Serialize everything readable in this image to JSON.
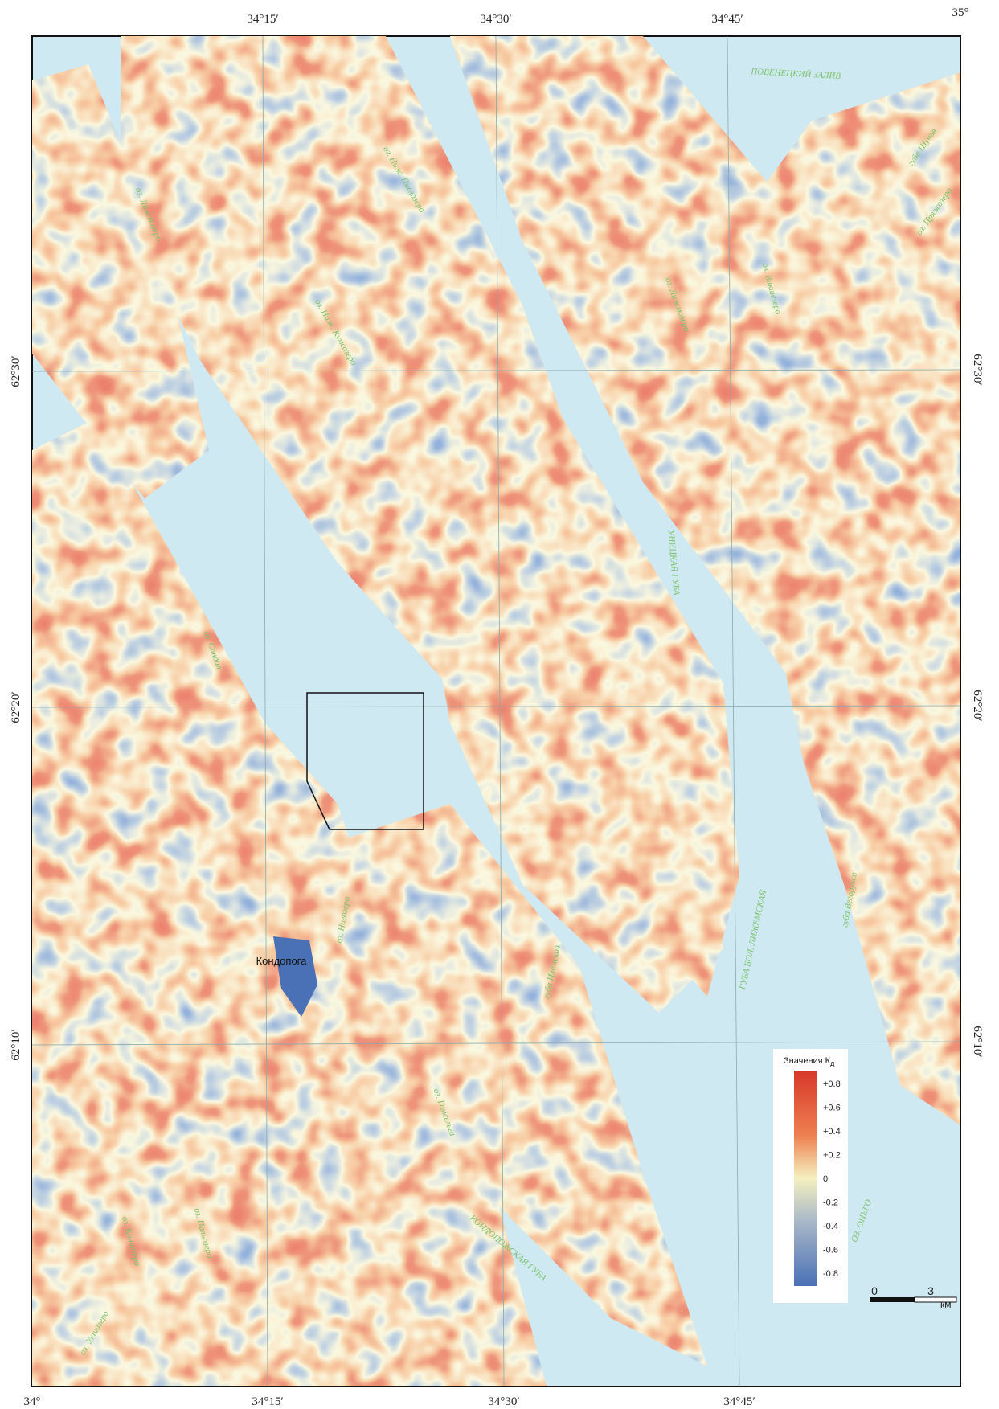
{
  "map": {
    "top_coords": [
      "34°15′",
      "34°30′",
      "34°45′",
      "35°"
    ],
    "bottom_coords": [
      "34°",
      "34°15′",
      "34°30′",
      "34°45′"
    ],
    "left_coords": [
      "62°30′",
      "62°20′",
      "62°10′"
    ],
    "right_coords": [
      "62°30′",
      "62°20′",
      "62°10′"
    ],
    "places": [
      "ПОВЕНЕЦКИЙ ЗАЛИВ",
      "губа Щучья",
      "оз. Пряжозеро",
      "оз. Лижмозеро",
      "оз. Ниж. Пиелозеро",
      "оз. Ниж. Кумсозеро",
      "оз. Викшезеро",
      "оз. Лижмозеро",
      "УНИЦКАЯ ГУБА",
      "оз. Сандал",
      "губа Вегорукса",
      "ГУБА БОЛ. ЛИЖЕМСКАЯ",
      "губа Илемская",
      "оз. Нигозеро",
      "Кондопога",
      "оз. Гомсельга",
      "КОНДОПОЖСКАЯ ГУБА",
      "ОЗ. ОНЕГО",
      "оз. Кончезеро",
      "оз. Пальозеро",
      "оз. Укшозеро"
    ],
    "legend": {
      "title": "Значения К",
      "subscript": "д",
      "labels": [
        "+0.8",
        "+0.6",
        "+0.4",
        "+0.2",
        "0",
        "-0.2",
        "-0.4",
        "-0.6",
        "-0.8"
      ]
    },
    "scale": {
      "start": "0",
      "end": "3",
      "unit": "км"
    }
  }
}
